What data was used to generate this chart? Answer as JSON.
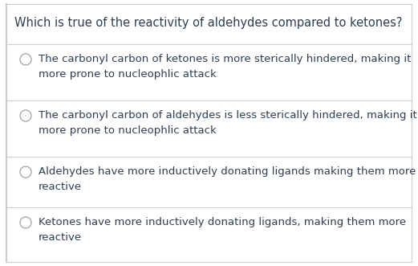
{
  "background_color": "#ffffff",
  "border_left_color": "#cccccc",
  "title": "Which is true of the reactivity of aldehydes compared to ketones?",
  "title_fontsize": 10.5,
  "title_color": "#2d3e50",
  "options": [
    "The carbonyl carbon of ketones is more sterically hindered, making it\nmore prone to nucleophlic attack",
    "The carbonyl carbon of aldehydes is less sterically hindered, making it\nmore prone to nucleophlic attack",
    "Aldehydes have more inductively donating ligands making them more\nreactive",
    "Ketones have more inductively donating ligands, making them more\nreactive"
  ],
  "option_fontsize": 9.5,
  "option_color": "#2d3e50",
  "radio_color": "#aaaaaa",
  "separator_color": "#d0d0d0",
  "figsize": [
    5.21,
    3.31
  ],
  "dpi": 100
}
